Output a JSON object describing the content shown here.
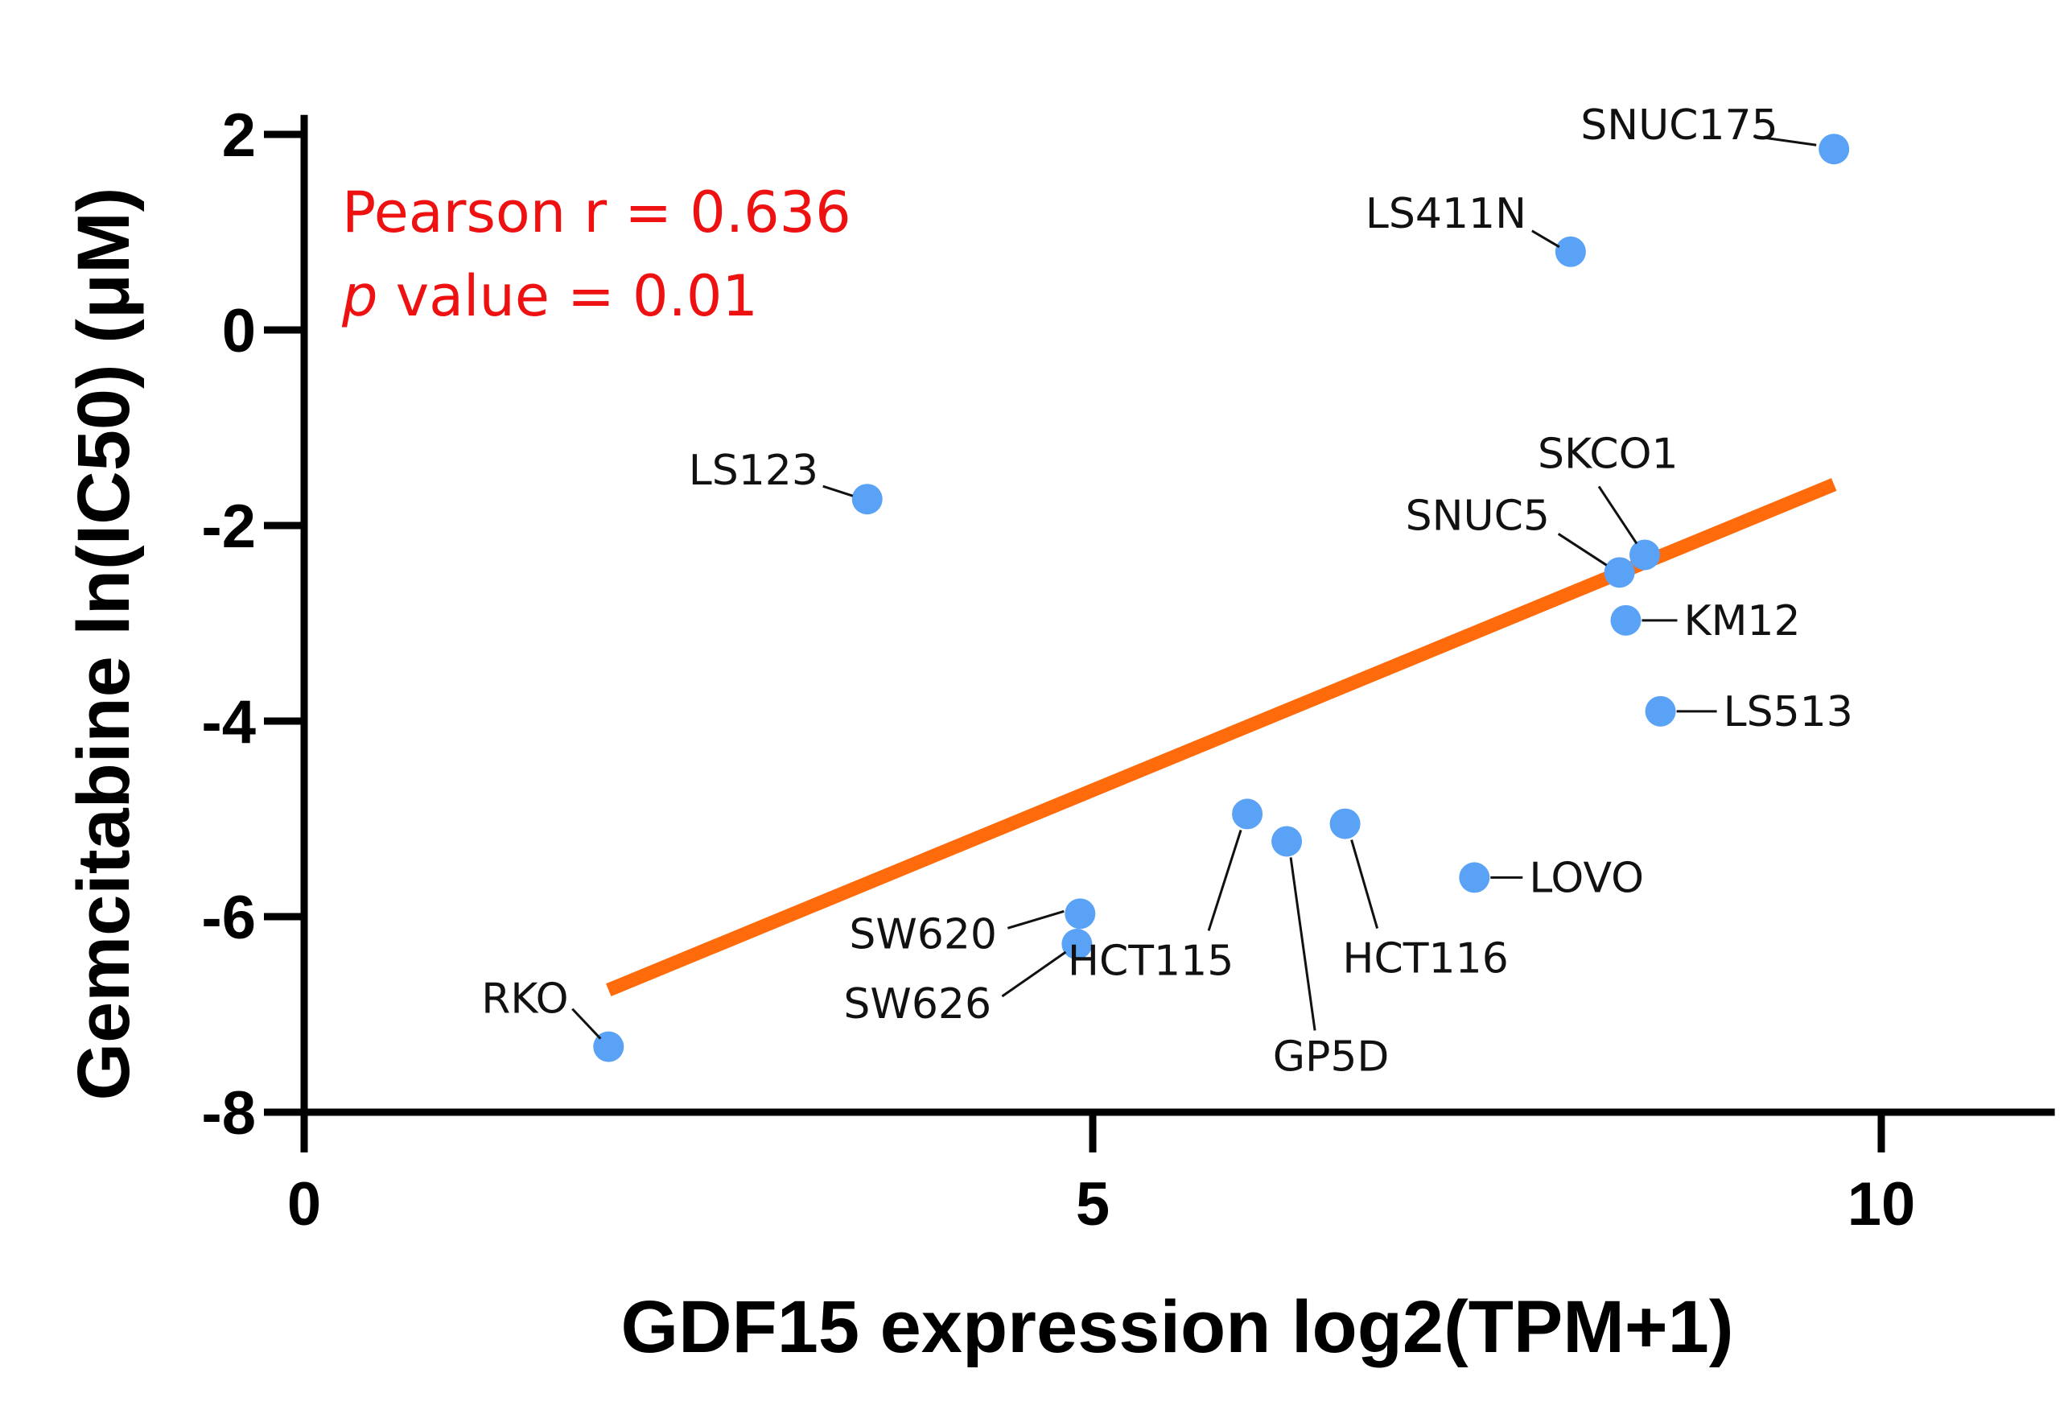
{
  "chart_data": {
    "type": "scatter",
    "xlabel": "GDF15 expression log2(TPM+1)",
    "ylabel": "Gemcitabine ln(IC50) (μM)",
    "xlim": [
      0,
      11.1
    ],
    "ylim": [
      -8,
      2.2
    ],
    "xticks": [
      0,
      5,
      10
    ],
    "xtick_labels": [
      "0",
      "5",
      "10"
    ],
    "yticks": [
      2,
      0,
      -2,
      -4,
      -6,
      -8
    ],
    "ytick_labels": [
      "2",
      "0",
      "-2",
      "-4",
      "-6",
      "-8"
    ],
    "points": [
      {
        "label": "SNUC175",
        "x": 9.7,
        "y": 1.85
      },
      {
        "label": "LS411N",
        "x": 8.03,
        "y": 0.8
      },
      {
        "label": "LS123",
        "x": 3.57,
        "y": -1.73
      },
      {
        "label": "SKCO1",
        "x": 8.5,
        "y": -2.3
      },
      {
        "label": "SNUC5",
        "x": 8.34,
        "y": -2.48
      },
      {
        "label": "KM12",
        "x": 8.38,
        "y": -2.97
      },
      {
        "label": "LS513",
        "x": 8.6,
        "y": -3.9
      },
      {
        "label": "HCT115",
        "x": 5.98,
        "y": -4.95
      },
      {
        "label": "GP5D",
        "x": 6.23,
        "y": -5.23
      },
      {
        "label": "HCT116",
        "x": 6.6,
        "y": -5.05
      },
      {
        "label": "LOVO",
        "x": 7.42,
        "y": -5.6
      },
      {
        "label": "SW620",
        "x": 4.92,
        "y": -5.97
      },
      {
        "label": "SW626",
        "x": 4.9,
        "y": -6.28
      },
      {
        "label": "RKO",
        "x": 1.93,
        "y": -7.33
      }
    ],
    "regression": {
      "x1": 1.93,
      "y1": -6.75,
      "x2": 9.7,
      "y2": -1.58
    },
    "annotation": {
      "line1": "Pearson r = 0.636",
      "p_symbol": "p",
      "line2_rest": " value = 0.01"
    },
    "colors": {
      "points": "#5aa2f5",
      "regression": "#ff6a0a",
      "annotation": "#ee1111",
      "axis": "#000000"
    }
  }
}
